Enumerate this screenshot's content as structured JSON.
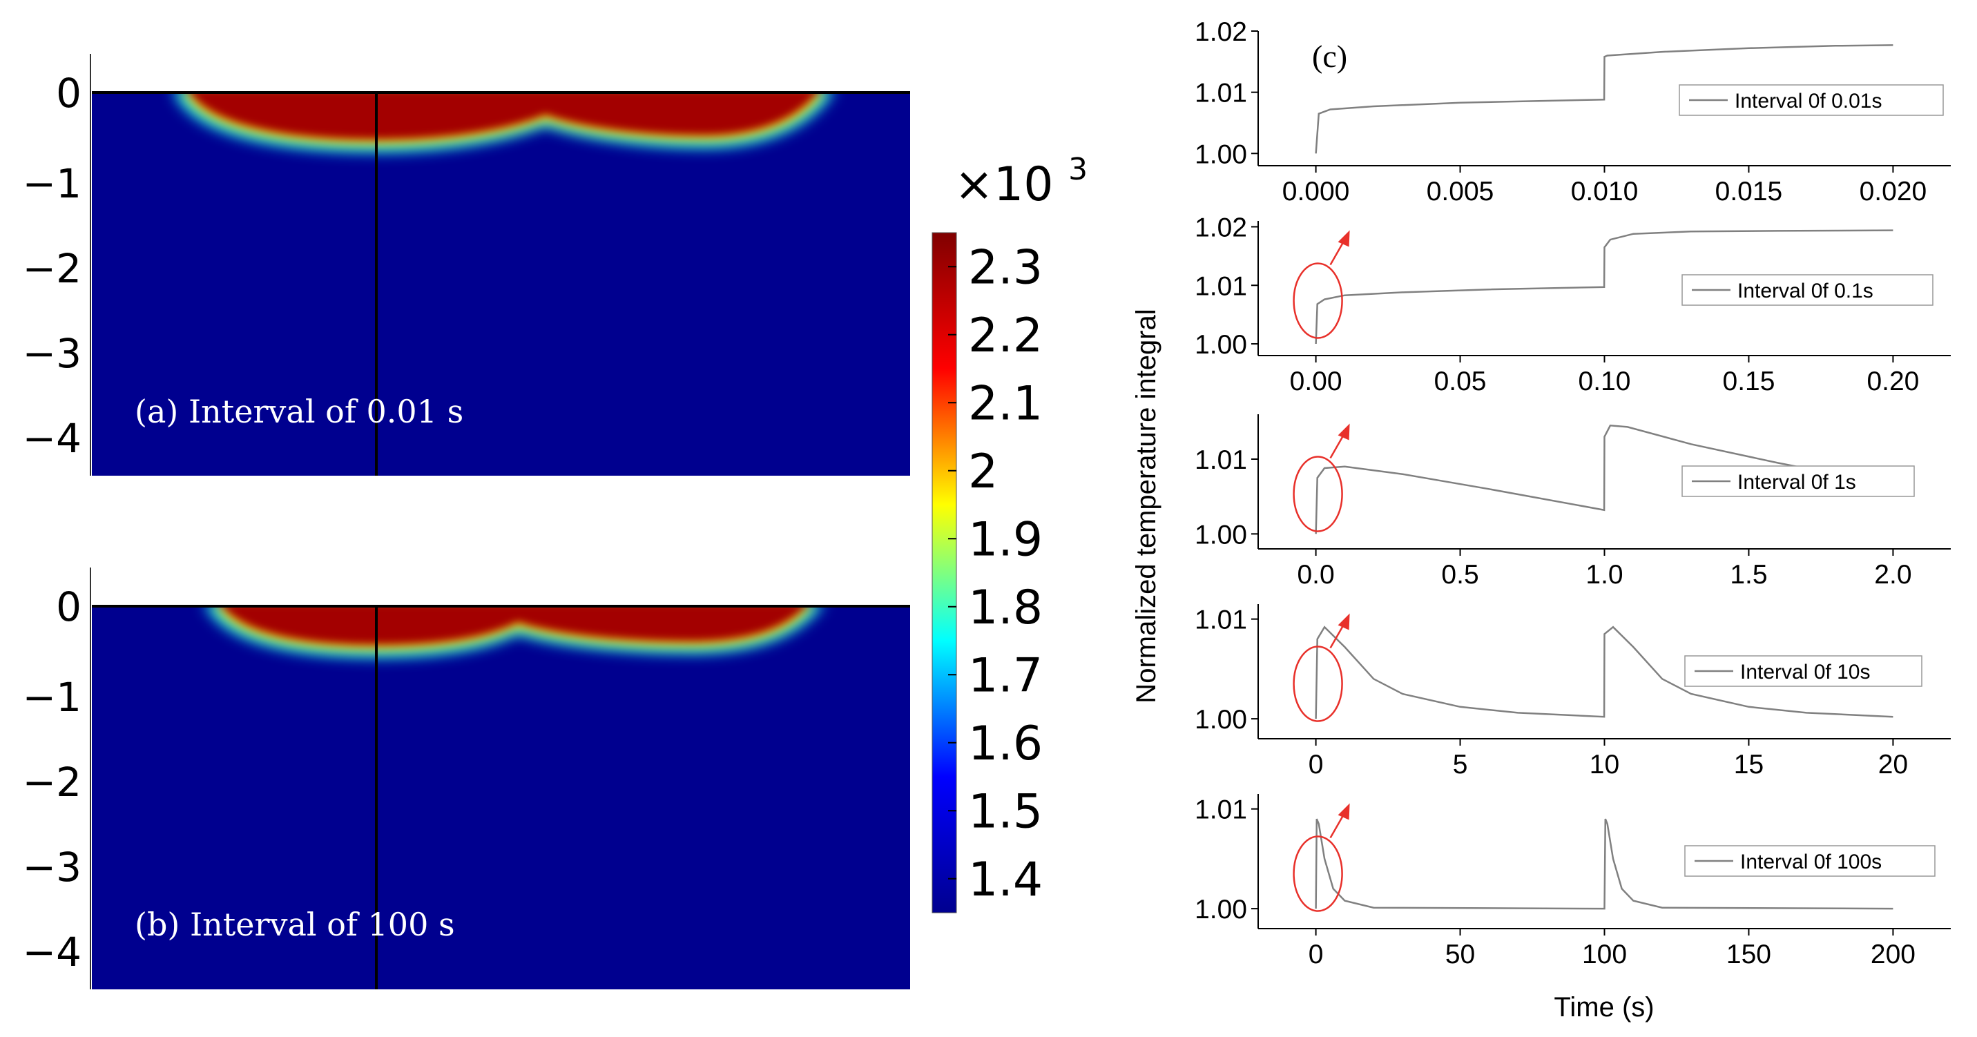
{
  "heatmaps": [
    {
      "label": "(a) Interval of 0.01 s"
    },
    {
      "label": "(b) Interval of 100 s"
    }
  ],
  "heatmap_yticks": [
    "0",
    "−1",
    "−2",
    "−3",
    "−4"
  ],
  "colorbar": {
    "multiplier_base": "×10",
    "multiplier_exp": "3",
    "ticks": [
      "2.3",
      "2.2",
      "2.1",
      "2",
      "1.9",
      "1.8",
      "1.7",
      "1.6",
      "1.5",
      "1.4"
    ],
    "colors": [
      "#00008f",
      "#0000ff",
      "#00ffff",
      "#ffff00",
      "#ff0000",
      "#800000"
    ]
  },
  "right_panel": {
    "label": "(c)",
    "ylabel": "Normalized temperature integral",
    "xlabel": "Time (s)",
    "line_color": "#808080",
    "annotation_color": "#e8302a"
  },
  "chart_data": [
    {
      "type": "heatmap",
      "title": "(a) Interval of 0.01 s",
      "y_tick_labels": [
        "0",
        "−1",
        "−2",
        "−3",
        "−4"
      ],
      "colorbar_range": [
        1.35,
        2.35
      ],
      "colorbar_multiplier": 1000
    },
    {
      "type": "heatmap",
      "title": "(b) Interval of 100 s",
      "y_tick_labels": [
        "0",
        "−1",
        "−2",
        "−3",
        "−4"
      ],
      "colorbar_range": [
        1.35,
        2.35
      ],
      "colorbar_multiplier": 1000
    },
    {
      "type": "line",
      "legend": "Interval 0f 0.01s",
      "xlim": [
        -0.002,
        0.022
      ],
      "ylim": [
        0.998,
        1.02
      ],
      "xticks": [
        "0.000",
        "0.005",
        "0.010",
        "0.015",
        "0.020"
      ],
      "yticks": [
        "1.00",
        "1.01",
        "1.02"
      ],
      "x": [
        0,
        0.0001,
        0.0005,
        0.002,
        0.005,
        0.008,
        0.00999,
        0.01,
        0.0101,
        0.012,
        0.015,
        0.018,
        0.02
      ],
      "y": [
        1.0,
        1.0065,
        1.0072,
        1.0077,
        1.0083,
        1.0086,
        1.0088,
        1.0158,
        1.016,
        1.0166,
        1.0172,
        1.0176,
        1.0177
      ],
      "annotation": false
    },
    {
      "type": "line",
      "legend": "Interval 0f 0.1s",
      "xlim": [
        -0.02,
        0.22
      ],
      "ylim": [
        0.998,
        1.021
      ],
      "xticks": [
        "0.00",
        "0.05",
        "0.10",
        "0.15",
        "0.20"
      ],
      "yticks": [
        "1.00",
        "1.01",
        "1.02"
      ],
      "x": [
        0,
        0.0005,
        0.003,
        0.01,
        0.03,
        0.06,
        0.0999,
        0.1,
        0.102,
        0.11,
        0.13,
        0.16,
        0.2
      ],
      "y": [
        1.0,
        1.0068,
        1.0076,
        1.0083,
        1.0088,
        1.0093,
        1.0097,
        1.0165,
        1.0178,
        1.0188,
        1.0192,
        1.0193,
        1.0194
      ],
      "annotation": true
    },
    {
      "type": "line",
      "legend": "Interval 0f 1s",
      "xlim": [
        -0.2,
        2.2
      ],
      "ylim": [
        0.998,
        1.016
      ],
      "xticks": [
        "0.0",
        "0.5",
        "1.0",
        "1.5",
        "2.0"
      ],
      "yticks": [
        "1.00",
        "1.01"
      ],
      "x": [
        0,
        0.005,
        0.03,
        0.1,
        0.3,
        0.6,
        0.999,
        1.0,
        1.02,
        1.08,
        1.3,
        1.6,
        2.0
      ],
      "y": [
        1.0,
        1.0075,
        1.0088,
        1.009,
        1.008,
        1.006,
        1.0032,
        1.013,
        1.0145,
        1.0143,
        1.012,
        1.0095,
        1.0065
      ],
      "annotation": true
    },
    {
      "type": "line",
      "legend": "Interval 0f 10s",
      "xlim": [
        -2,
        22
      ],
      "ylim": [
        0.998,
        1.0115
      ],
      "xticks": [
        "0",
        "5",
        "10",
        "15",
        "20"
      ],
      "yticks": [
        "1.00",
        "1.01"
      ],
      "x": [
        0,
        0.05,
        0.3,
        1,
        2,
        3,
        5,
        7,
        9.99,
        10,
        10.3,
        11,
        12,
        13,
        15,
        17,
        20
      ],
      "y": [
        1.0,
        1.008,
        1.0092,
        1.0072,
        1.004,
        1.0025,
        1.0012,
        1.0006,
        1.0002,
        1.0085,
        1.0092,
        1.0072,
        1.004,
        1.0025,
        1.0012,
        1.0006,
        1.0002
      ],
      "annotation": true
    },
    {
      "type": "line",
      "legend": "Interval 0f 100s",
      "xlim": [
        -20,
        220
      ],
      "ylim": [
        0.998,
        1.0115
      ],
      "xticks": [
        "0",
        "50",
        "100",
        "150",
        "200"
      ],
      "yticks": [
        "1.00",
        "1.01"
      ],
      "xlabel": "Time (s)",
      "x": [
        0,
        0.3,
        1,
        3,
        6,
        10,
        20,
        99.9,
        100,
        100.3,
        101,
        103,
        106,
        110,
        120,
        200
      ],
      "y": [
        1.0,
        1.009,
        1.0085,
        1.005,
        1.002,
        1.0008,
        1.0001,
        1.0,
        1.0,
        1.009,
        1.0085,
        1.005,
        1.002,
        1.0008,
        1.0001,
        1.0
      ],
      "annotation": true
    }
  ]
}
